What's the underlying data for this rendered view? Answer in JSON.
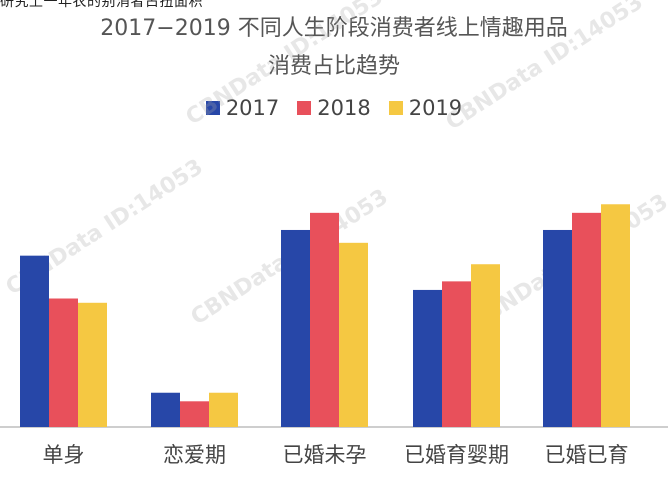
{
  "top_text": "研究上一年农的别消者占扭面积",
  "watermark_text": "CBNData ID:14053",
  "colors": {
    "2017": "#2747a8",
    "2018": "#e8505b",
    "2019": "#f5c842",
    "axis": "#bdbdbd"
  },
  "chart_data": {
    "type": "bar",
    "title_line1": "2017−2019 不同人生阶段消费者线上情趣用品",
    "title_line2": "消费占比趋势",
    "categories": [
      "单身",
      "恋爱期",
      "已婚未孕",
      "已婚育婴期",
      "已婚已育"
    ],
    "series": [
      {
        "name": "2017",
        "values": [
          2.0,
          0.4,
          2.3,
          1.6,
          2.3
        ]
      },
      {
        "name": "2018",
        "values": [
          1.5,
          0.3,
          2.5,
          1.7,
          2.5
        ]
      },
      {
        "name": "2019",
        "values": [
          1.45,
          0.4,
          2.15,
          1.9,
          2.6
        ]
      }
    ],
    "ylim": [
      0,
      3
    ],
    "legend_position": "top-center",
    "grid": false
  }
}
